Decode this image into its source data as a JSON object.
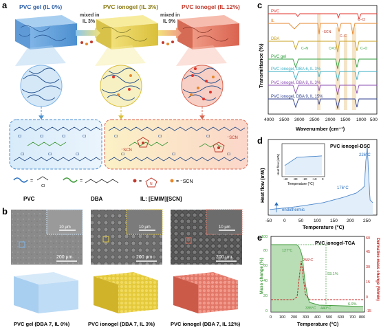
{
  "panel_a": {
    "letter": "a",
    "title_gel": "PVC gel (IL 0%)",
    "title_iono3": "PVC ionogel (IL 3%)",
    "title_iono12": "PVC ionogel (IL 12%)",
    "arrow1": [
      "mixed in",
      "IL 3%"
    ],
    "arrow2": [
      "mixed in",
      "IL 9%"
    ],
    "cl": "Cl",
    "scn": "⁻SCN",
    "legend_pvc": "PVC",
    "legend_dba": "DBA",
    "legend_il": "IL: [EMIM][SCN]",
    "legend_scn": "= ⁻SCN",
    "legend_cl": "Cl",
    "legend_n": "N"
  },
  "panel_b": {
    "letter": "b",
    "scale_inset": "10 µm",
    "scale_main": "200 µm",
    "caption1": "PVC gel (DBA 7, IL 0%)",
    "caption2": "PVC ionogel (DBA 7, IL 3%)",
    "caption3": "PVC ionogel (DBA 7, IL 12%)"
  },
  "panel_c": {
    "letter": "c",
    "ylabel": "Transmittance (%)",
    "xlabel": "Wavenumber (cm⁻¹)",
    "ticks": [
      "4000",
      "3500",
      "3000",
      "2500",
      "2000",
      "1500",
      "1000",
      "500"
    ],
    "series": [
      {
        "name": "PVC",
        "color": "#e0312a"
      },
      {
        "name": "IL",
        "color": "#e6862a"
      },
      {
        "name": "DBA",
        "color": "#c7a020"
      },
      {
        "name": "PVC gel",
        "color": "#2e9e3b"
      },
      {
        "name": "PVC ionogel, DBA 6, IL 3%",
        "color": "#3aaec4"
      },
      {
        "name": "PVC ionogel, DBA 8, IL 3%",
        "color": "#8a4bb3"
      },
      {
        "name": "PVC ionogel, DBA 9, IL 15%",
        "color": "#2c3e8f"
      }
    ],
    "annotations": [
      "C–Cl",
      "⁻SCN",
      "C–C",
      "C–N",
      "C=O",
      "C–O"
    ]
  },
  "panel_d": {
    "letter": "d",
    "title": "PVC ionogel-DSC",
    "ylabel": "Heat flow (mW)",
    "xlabel": "Temperature (°C)",
    "xticks": [
      "-50",
      "0",
      "50",
      "100",
      "150",
      "200",
      "250"
    ],
    "ann_226": "226°C",
    "ann_176": "176°C",
    "endo": "endothermic",
    "inset_ylabel": "Heat flow (mW)",
    "inset_xlabel": "Temperature (°C)",
    "inset_xticks": [
      "-40",
      "-30",
      "-20",
      "-10",
      "0"
    ]
  },
  "panel_e": {
    "letter": "e",
    "title": "PVC ionogel-TGA",
    "ylabel_left": "Mass change (%)",
    "ylabel_right": "Derivative mass change (%/min)",
    "xlabel": "Temperature (°C)",
    "xticks": [
      "0",
      "100",
      "200",
      "300",
      "400",
      "500",
      "600",
      "700",
      "800"
    ],
    "yleft": [
      "0",
      "20",
      "40",
      "60",
      "80",
      "100"
    ],
    "yright": [
      "60",
      "45",
      "30",
      "15",
      "0",
      "-15"
    ],
    "ann": [
      "127°C",
      "256°C",
      "93.1%",
      "335°C",
      "440°C",
      "6.9%"
    ],
    "colors": {
      "mass": "#3f9a3a",
      "deriv": "#c0231f"
    }
  }
}
